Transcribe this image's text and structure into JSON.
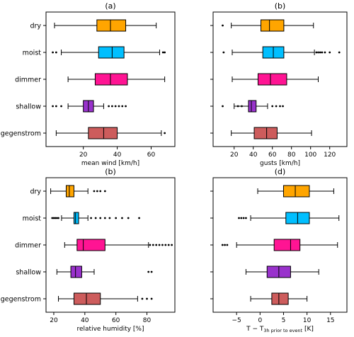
{
  "chart_data": [
    {
      "type": "box",
      "title": "(a)",
      "xlabel": "mean wind [km/h]",
      "xlim": [
        -2,
        74
      ],
      "xticks": [
        20,
        40,
        60
      ],
      "show_categories": true,
      "categories": [
        "dry",
        "moist",
        "dimmer",
        "shallow",
        "gegenstrom"
      ],
      "boxes": [
        {
          "category": "dry",
          "color": "#FFA500",
          "whisker_low": 3,
          "q1": 28,
          "median": 36,
          "q3": 45,
          "whisker_high": 63,
          "outliers": []
        },
        {
          "category": "moist",
          "color": "#00BFFF",
          "whisker_low": 7,
          "q1": 29,
          "median": 37,
          "q3": 44,
          "whisker_high": 65,
          "outliers": [
            2,
            4,
            67,
            68
          ]
        },
        {
          "category": "dimmer",
          "color": "#FF1493",
          "whisker_low": 11,
          "q1": 27,
          "median": 36,
          "q3": 46,
          "whisker_high": 68,
          "outliers": []
        },
        {
          "category": "shallow",
          "color": "#9932CC",
          "whisker_low": 11,
          "q1": 20,
          "median": 23,
          "q3": 26,
          "whisker_high": 32,
          "outliers": [
            2,
            4,
            7,
            35,
            37,
            39,
            41,
            43,
            45
          ]
        },
        {
          "category": "gegenstrom",
          "color": "#CD5C5C",
          "whisker_low": 4,
          "q1": 23,
          "median": 32,
          "q3": 40,
          "whisker_high": 66,
          "outliers": [
            68
          ]
        }
      ]
    },
    {
      "type": "box",
      "title": "(b)",
      "xlabel": "gusts [km/h]",
      "xlim": [
        -2,
        138
      ],
      "xticks": [
        20,
        40,
        60,
        80,
        100,
        120
      ],
      "show_categories": false,
      "categories": [
        "dry",
        "moist",
        "dimmer",
        "shallow",
        "gegenstrom"
      ],
      "boxes": [
        {
          "category": "dry",
          "color": "#FFA500",
          "whisker_low": 17,
          "q1": 48,
          "median": 57,
          "q3": 72,
          "whisker_high": 103,
          "outliers": [
            8
          ]
        },
        {
          "category": "moist",
          "color": "#00BFFF",
          "whisker_low": 18,
          "q1": 50,
          "median": 61,
          "q3": 72,
          "whisker_high": 104,
          "outliers": [
            9,
            106,
            108,
            110,
            112,
            115,
            120,
            130
          ]
        },
        {
          "category": "dimmer",
          "color": "#FF1493",
          "whisker_low": 18,
          "q1": 45,
          "median": 58,
          "q3": 75,
          "whisker_high": 108,
          "outliers": []
        },
        {
          "category": "shallow",
          "color": "#9932CC",
          "whisker_low": 20,
          "q1": 35,
          "median": 38,
          "q3": 43,
          "whisker_high": 55,
          "outliers": [
            8,
            24,
            28,
            60,
            64,
            68,
            71
          ]
        },
        {
          "category": "gegenstrom",
          "color": "#CD5C5C",
          "whisker_low": 17,
          "q1": 41,
          "median": 54,
          "q3": 65,
          "whisker_high": 101,
          "outliers": []
        }
      ]
    },
    {
      "type": "box",
      "title": "(b)",
      "xlabel": "relative humidity [%]",
      "xlim": [
        15,
        98
      ],
      "xticks": [
        20,
        40,
        60,
        80
      ],
      "show_categories": true,
      "categories": [
        "dry",
        "moist",
        "dimmer",
        "shallow",
        "gegenstrom"
      ],
      "boxes": [
        {
          "category": "dry",
          "color": "#FFA500",
          "whisker_low": 18,
          "q1": 28,
          "median": 30,
          "q3": 33,
          "whisker_high": 42,
          "outliers": [
            46,
            48,
            50,
            53
          ]
        },
        {
          "category": "moist",
          "color": "#00BFFF",
          "whisker_low": 25,
          "q1": 33,
          "median": 34,
          "q3": 36,
          "whisker_high": 42,
          "outliers": [
            19,
            20,
            21,
            22,
            23,
            44,
            47,
            50,
            53,
            56,
            60,
            64,
            68,
            75
          ]
        },
        {
          "category": "dimmer",
          "color": "#FF1493",
          "whisker_low": 27,
          "q1": 35,
          "median": 39,
          "q3": 53,
          "whisker_high": 81,
          "outliers": [
            82,
            84,
            86,
            88,
            90,
            92,
            94,
            96
          ]
        },
        {
          "category": "shallow",
          "color": "#9932CC",
          "whisker_low": 22,
          "q1": 31,
          "median": 34,
          "q3": 38,
          "whisker_high": 46,
          "outliers": [
            81,
            83
          ]
        },
        {
          "category": "gegenstrom",
          "color": "#CD5C5C",
          "whisker_low": 23,
          "q1": 33,
          "median": 41,
          "q3": 50,
          "whisker_high": 74,
          "outliers": [
            77,
            80,
            83
          ]
        }
      ]
    },
    {
      "type": "box",
      "title": "(d)",
      "xlabel": "T − T",
      "xlabel_sub": "3h prior to event",
      "xlabel_unit": " [K]",
      "xlim": [
        -10,
        18.5
      ],
      "xticks": [
        -5,
        0,
        5,
        10,
        15
      ],
      "show_categories": false,
      "categories": [
        "dry",
        "moist",
        "dimmer",
        "shallow",
        "gegenstrom"
      ],
      "boxes": [
        {
          "category": "dry",
          "color": "#FFA500",
          "whisker_low": -0.5,
          "q1": 5,
          "median": 7.5,
          "q3": 10.5,
          "whisker_high": 15.7,
          "outliers": []
        },
        {
          "category": "moist",
          "color": "#00BFFF",
          "whisker_low": -2,
          "q1": 5.5,
          "median": 8,
          "q3": 10.5,
          "whisker_high": 16.8,
          "outliers": [
            -4.5,
            -4,
            -3.5,
            -3
          ]
        },
        {
          "category": "dimmer",
          "color": "#FF1493",
          "whisker_low": -5,
          "q1": 3,
          "median": 6.5,
          "q3": 8.5,
          "whisker_high": 16.5,
          "outliers": [
            -8,
            -7.5,
            -7
          ]
        },
        {
          "category": "shallow",
          "color": "#9932CC",
          "whisker_low": -3,
          "q1": 1.5,
          "median": 4,
          "q3": 6.5,
          "whisker_high": 12.5,
          "outliers": []
        },
        {
          "category": "gegenstrom",
          "color": "#CD5C5C",
          "whisker_low": -2,
          "q1": 2.5,
          "median": 4,
          "q3": 6,
          "whisker_high": 10,
          "outliers": []
        }
      ]
    }
  ]
}
